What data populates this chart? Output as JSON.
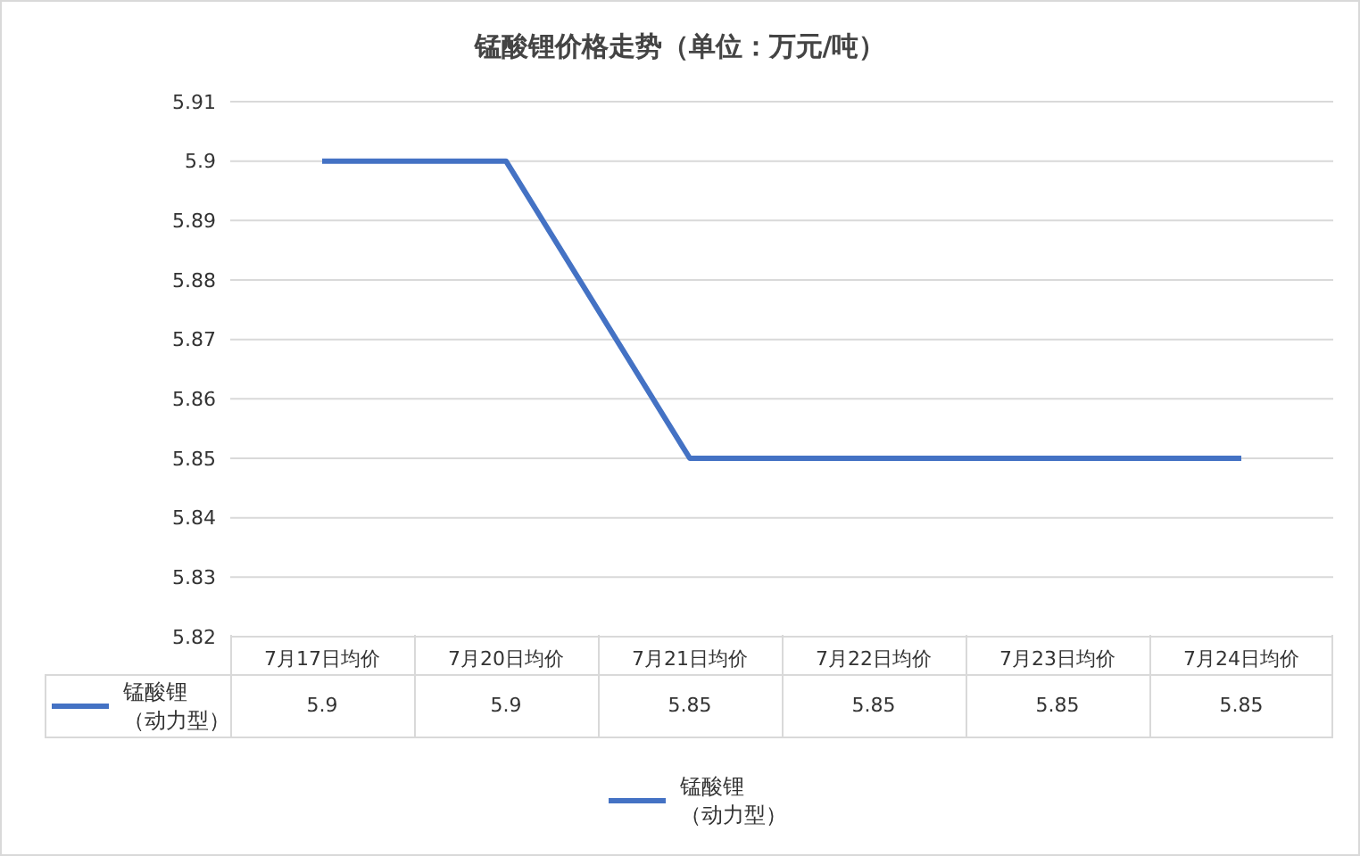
{
  "chart_data": {
    "type": "line",
    "title": "锰酸锂价格走势（单位：万元/吨）",
    "categories": [
      "7月17日均价",
      "7月20日均价",
      "7月21日均价",
      "7月22日均价",
      "7月23日均价",
      "7月24日均价"
    ],
    "series": [
      {
        "name": "锰酸锂（动力型）",
        "color": "#4472c4",
        "values": [
          5.9,
          5.9,
          5.85,
          5.85,
          5.85,
          5.85
        ]
      }
    ],
    "ylim": [
      5.82,
      5.91
    ],
    "yticks": [
      5.82,
      5.83,
      5.84,
      5.85,
      5.86,
      5.87,
      5.88,
      5.89,
      5.9,
      5.91
    ],
    "grid": "y",
    "legend": "bottom",
    "data_labels": true,
    "marker": "none",
    "line_style": "solid"
  }
}
